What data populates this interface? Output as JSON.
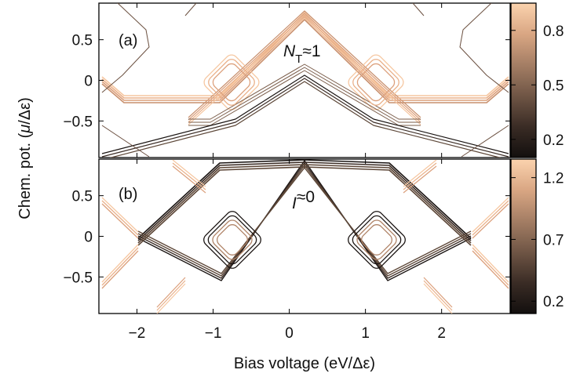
{
  "chart_data": [
    {
      "type": "heatmap",
      "panel_label": "(a)",
      "annotation": {
        "symbol": "N",
        "subscript": "T",
        "suffix": "≈1"
      },
      "xlim": [
        -2.5,
        2.9
      ],
      "ylim": [
        -0.95,
        0.95
      ],
      "yticks": [
        {
          "value": 0.5,
          "label": "0.5"
        },
        {
          "value": 0,
          "label": "0"
        },
        {
          "value": -0.5,
          "label": "−0.5"
        }
      ],
      "colorbar": {
        "range": [
          0.1,
          0.95
        ],
        "ticks": [
          {
            "value": 0.8,
            "label": "0.8"
          },
          {
            "value": 0.5,
            "label": "0.5"
          },
          {
            "value": 0.2,
            "label": "0.2"
          }
        ]
      },
      "grid": false
    },
    {
      "type": "heatmap",
      "panel_label": "(b)",
      "annotation": {
        "symbol": "I",
        "subscript": "",
        "suffix": "≈0"
      },
      "xlim": [
        -2.5,
        2.9
      ],
      "ylim": [
        -0.95,
        0.95
      ],
      "yticks": [
        {
          "value": 0.5,
          "label": "0.5"
        },
        {
          "value": 0,
          "label": "0"
        },
        {
          "value": -0.5,
          "label": "−0.5"
        }
      ],
      "colorbar": {
        "range": [
          0.1,
          1.35
        ],
        "ticks": [
          {
            "value": 1.2,
            "label": "1.2"
          },
          {
            "value": 0.7,
            "label": "0.7"
          },
          {
            "value": 0.2,
            "label": "0.2"
          }
        ]
      },
      "grid": false
    }
  ],
  "xaxis": {
    "label": "Bias voltage (eV/Δε)",
    "ticks": [
      {
        "value": -2,
        "label": "−2"
      },
      {
        "value": -1,
        "label": "−1"
      },
      {
        "value": 0,
        "label": "0"
      },
      {
        "value": 1,
        "label": "1"
      },
      {
        "value": 2,
        "label": "2"
      }
    ]
  },
  "yaxis": {
    "label_prefix": "Chem. pot. (",
    "label_symbol": "μ",
    "label_suffix": "/Δε)"
  },
  "colors": {
    "colormap_low": "#1a1412",
    "colormap_mid": "#8a6a55",
    "colormap_high": "#f7c9a3"
  }
}
